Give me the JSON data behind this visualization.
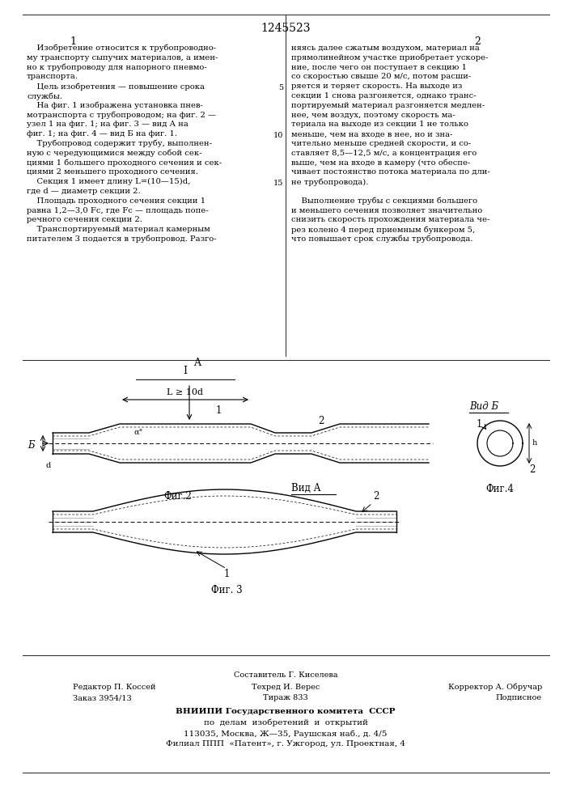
{
  "patent_number": "1245523",
  "page_left": "1",
  "page_right": "2",
  "bg_color": "#ffffff",
  "text_color": "#000000",
  "left_col_lines": [
    "    Изобретение относится к трубопроводно-",
    "му транспорту сыпучих материалов, а имен-",
    "но к трубопроводу для напорного пневмо-",
    "транспорта.",
    "    Цель изобретения — повышение срока",
    "службы.",
    "    На фиг. 1 изображена установка пнев-",
    "мотранспорта с трубопроводом; на фиг. 2 —",
    "узел 1 на фиг. 1; на фиг. 3 — вид А на",
    "фиг. 1; на фиг. 4 — вид Б на фиг. 1.",
    "    Трубопровод содержит трубу, выполнен-",
    "ную с чередующимися между собой сек-",
    "циями 1 большего проходного сечения и сек-",
    "циями 2 меньшего проходного сечения.",
    "    Секция 1 имеет длину L=(10—15)d,",
    "где d — диаметр секции 2.",
    "    Площадь проходного сечения секции 1",
    "равна 1,2—3,0 Fc, где Fc — площадь попе-",
    "речного сечения секции 2.",
    "    Транспортируемый материал камерным",
    "питателем 3 подается в трубопровод. Разго-"
  ],
  "right_col_lines": [
    "няясь далее сжатым воздухом, материал на",
    "прямолинейном участке приобретает ускоре-",
    "ние, после чего он поступает в секцию 1",
    "со скоростью свыше 20 м/с, потом расши-",
    "ряется и теряет скорость. На выходе из",
    "секции 1 снова разгоняется, однако транс-",
    "портируемый материал разгоняется медлен-",
    "нее, чем воздух, поэтому скорость ма-",
    "териала на выходе из секции 1 не только",
    "меньше, чем на входе в нее, но и зна-",
    "чительно меньше средней скорости, и со-",
    "ставляет 8,5—12,5 м/с, а концентрация его",
    "выше, чем на входе в камеру (что обеспе-",
    "чивает постоянство потока материала по дли-",
    "не трубопровода).",
    "",
    "    Выполнение трубы с секциями большего",
    "и меньшего сечения позволяет значительно",
    "снизить скорость прохождения материала че-",
    "рез колено 4 перед приемным бункером 5,",
    "что повышает срок службы трубопровода."
  ],
  "linenums": [
    5,
    10,
    15
  ],
  "footer_comp": "Составитель Г. Киселева",
  "footer_ed": "Редактор П. Коссей",
  "footer_tech": "Техред И. Верес",
  "footer_corr": "Корректор А. Обручар",
  "footer_order": "Заказ 3954/13",
  "footer_circ": "Тираж 833",
  "footer_sub": "Подписное",
  "footer_vniipи": "ВНИИПИ Государственного комитета  СССР",
  "footer_line3": "по  делам  изобретений  и  открытий",
  "footer_line4": "113035, Москва, Ж—35, Раушская наб., д. 4/5",
  "footer_line5": "Филиал ППП  «Патент», г. Ужгород, ул. Проектная, 4"
}
